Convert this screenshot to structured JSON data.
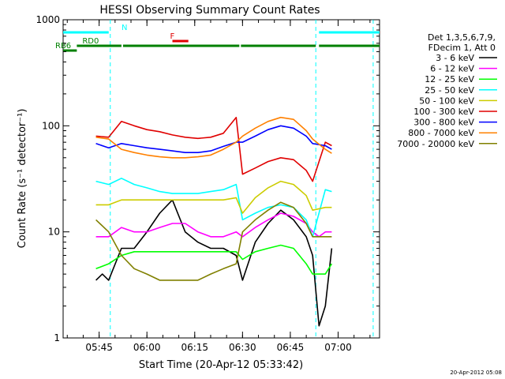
{
  "chart_data": {
    "type": "line",
    "title": "HESSI Observing Summary Count Rates",
    "xlabel": "Start Time (20-Apr-12 05:33:42)",
    "ylabel": "Count Rate (s⁻¹ detector⁻¹)",
    "y_scale": "log",
    "ylim": [
      1,
      1000
    ],
    "xlim": [
      "05:33:42",
      "07:13:00"
    ],
    "x_ticks": [
      "05:45",
      "06:00",
      "06:15",
      "06:30",
      "06:45",
      "07:00"
    ],
    "y_ticks": [
      "1",
      "10",
      "100",
      "1000"
    ],
    "footer": "20-Apr-2012 05:08",
    "legend": {
      "placement": "right",
      "header": [
        "Det 1,3,5,6,7,9,",
        "FDecim 1, Att 0"
      ]
    },
    "flags": [
      {
        "label": "N",
        "color": "#00ffff",
        "segments": [
          [
            "05:33:42",
            "05:48:00"
          ],
          [
            "06:54:00",
            "07:13:00"
          ]
        ]
      },
      {
        "label": "F",
        "color": "#e00000",
        "segments": [
          [
            "06:08:00",
            "06:13:00"
          ]
        ]
      },
      {
        "label": "RD0",
        "color": "#008000",
        "segments": [
          [
            "05:38:00",
            "05:52:00"
          ],
          [
            "05:52:30",
            "06:29:00"
          ],
          [
            "06:29:30",
            "06:53:00"
          ],
          [
            "06:54:00",
            "07:13:00"
          ]
        ]
      },
      {
        "label": "RB6",
        "color": "#008000",
        "segments": [
          [
            "05:33:42",
            "05:38:00"
          ]
        ]
      }
    ],
    "night_markers": [
      "05:48:30",
      "06:53:00",
      "07:11:00"
    ],
    "series": [
      {
        "name": "3 - 6 keV",
        "color": "#000000",
        "x": [
          "05:44",
          "05:46",
          "05:48",
          "05:52",
          "05:56",
          "06:00",
          "06:04",
          "06:08",
          "06:12",
          "06:16",
          "06:20",
          "06:24",
          "06:28",
          "06:30",
          "06:34",
          "06:38",
          "06:42",
          "06:46",
          "06:50",
          "06:52",
          "06:54",
          "06:56",
          "06:58"
        ],
        "y": [
          3.5,
          4,
          3.5,
          7,
          7,
          10,
          15,
          20,
          10,
          8,
          7,
          7,
          6,
          3.5,
          8,
          12,
          16,
          13,
          9,
          6,
          1.3,
          2,
          7
        ]
      },
      {
        "name": "6 - 12 keV",
        "color": "#ff00ff",
        "x": [
          "05:44",
          "05:48",
          "05:52",
          "05:56",
          "06:00",
          "06:04",
          "06:08",
          "06:12",
          "06:16",
          "06:20",
          "06:24",
          "06:28",
          "06:30",
          "06:34",
          "06:38",
          "06:42",
          "06:46",
          "06:50",
          "06:52",
          "06:54",
          "06:56",
          "06:58"
        ],
        "y": [
          9,
          9,
          11,
          10,
          10,
          11,
          12,
          12,
          10,
          9,
          9,
          10,
          9,
          11,
          13,
          15,
          14,
          12,
          10,
          9,
          10,
          10
        ]
      },
      {
        "name": "12 - 25 keV",
        "color": "#00ff00",
        "x": [
          "05:44",
          "05:48",
          "05:52",
          "05:56",
          "06:00",
          "06:04",
          "06:08",
          "06:12",
          "06:16",
          "06:20",
          "06:24",
          "06:28",
          "06:30",
          "06:34",
          "06:38",
          "06:42",
          "06:46",
          "06:50",
          "06:52",
          "06:56",
          "06:58"
        ],
        "y": [
          4.5,
          5,
          6,
          6.5,
          6.5,
          6.5,
          6.5,
          6.5,
          6.5,
          6.5,
          6.5,
          6.5,
          5.5,
          6.5,
          7,
          7.5,
          7,
          5,
          4,
          4,
          5
        ]
      },
      {
        "name": "25 - 50 keV",
        "color": "#00ffff",
        "x": [
          "05:44",
          "05:48",
          "05:52",
          "05:56",
          "06:00",
          "06:04",
          "06:08",
          "06:12",
          "06:16",
          "06:20",
          "06:24",
          "06:28",
          "06:30",
          "06:34",
          "06:38",
          "06:42",
          "06:46",
          "06:50",
          "06:52",
          "06:56",
          "06:58"
        ],
        "y": [
          30,
          28,
          32,
          28,
          26,
          24,
          23,
          23,
          23,
          24,
          25,
          28,
          13,
          15,
          17,
          18,
          17,
          13,
          9,
          25,
          24
        ]
      },
      {
        "name": "50 - 100 keV",
        "color": "#cccc00",
        "x": [
          "05:44",
          "05:48",
          "05:52",
          "05:56",
          "06:00",
          "06:04",
          "06:08",
          "06:12",
          "06:16",
          "06:20",
          "06:24",
          "06:28",
          "06:30",
          "06:34",
          "06:38",
          "06:42",
          "06:46",
          "06:50",
          "06:52",
          "06:56",
          "06:58"
        ],
        "y": [
          18,
          18,
          20,
          20,
          20,
          20,
          20,
          20,
          20,
          20,
          20,
          21,
          15,
          21,
          26,
          30,
          28,
          22,
          16,
          17,
          17
        ]
      },
      {
        "name": "100 - 300 keV",
        "color": "#e00000",
        "x": [
          "05:44",
          "05:48",
          "05:52",
          "05:56",
          "06:00",
          "06:04",
          "06:08",
          "06:12",
          "06:16",
          "06:20",
          "06:24",
          "06:28",
          "06:30",
          "06:34",
          "06:38",
          "06:42",
          "06:46",
          "06:50",
          "06:52",
          "06:56",
          "06:58"
        ],
        "y": [
          80,
          78,
          110,
          100,
          92,
          88,
          82,
          78,
          76,
          78,
          85,
          120,
          35,
          40,
          46,
          50,
          48,
          38,
          30,
          70,
          65
        ]
      },
      {
        "name": "300 - 800 keV",
        "color": "#0000ff",
        "x": [
          "05:44",
          "05:48",
          "05:52",
          "05:56",
          "06:00",
          "06:04",
          "06:08",
          "06:12",
          "06:16",
          "06:20",
          "06:24",
          "06:28",
          "06:30",
          "06:34",
          "06:38",
          "06:42",
          "06:46",
          "06:50",
          "06:52",
          "06:56",
          "06:58"
        ],
        "y": [
          68,
          62,
          68,
          65,
          62,
          60,
          58,
          56,
          56,
          58,
          64,
          70,
          70,
          80,
          92,
          100,
          95,
          80,
          68,
          65,
          60
        ]
      },
      {
        "name": "800 - 7000 keV",
        "color": "#ff8000",
        "x": [
          "05:44",
          "05:48",
          "05:52",
          "05:56",
          "06:00",
          "06:04",
          "06:08",
          "06:12",
          "06:16",
          "06:20",
          "06:24",
          "06:28",
          "06:30",
          "06:34",
          "06:38",
          "06:42",
          "06:46",
          "06:50",
          "06:52",
          "06:56",
          "06:58"
        ],
        "y": [
          78,
          75,
          60,
          56,
          53,
          51,
          50,
          50,
          51,
          53,
          60,
          70,
          80,
          95,
          110,
          120,
          115,
          90,
          75,
          60,
          55
        ]
      },
      {
        "name": "7000 - 20000 keV",
        "color": "#808000",
        "x": [
          "05:44",
          "05:48",
          "05:52",
          "05:56",
          "06:00",
          "06:04",
          "06:08",
          "06:12",
          "06:16",
          "06:20",
          "06:24",
          "06:28",
          "06:30",
          "06:34",
          "06:38",
          "06:42",
          "06:46",
          "06:50",
          "06:52",
          "06:56",
          "06:58"
        ],
        "y": [
          13,
          10,
          6,
          4.5,
          4,
          3.5,
          3.5,
          3.5,
          3.5,
          4,
          4.5,
          5,
          10,
          13,
          16,
          19,
          17,
          12,
          9,
          9,
          9
        ]
      }
    ]
  }
}
